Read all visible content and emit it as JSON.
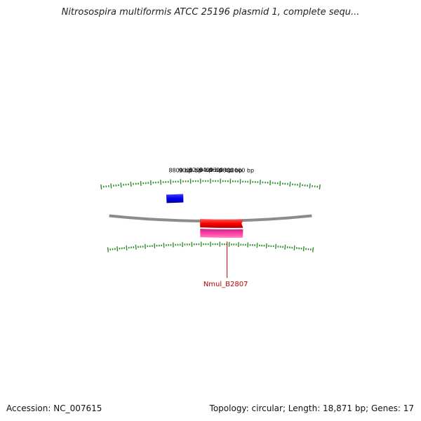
{
  "header": {
    "title": "Nitrosospira multiformis ATCC 25196 plasmid 1, complete sequ..."
  },
  "map": {
    "tick_labels": [
      {
        "label": "10000 bp",
        "bp": 10000
      },
      {
        "label": "9800 bp",
        "bp": 9800
      },
      {
        "label": "9600 bp",
        "bp": 9600
      },
      {
        "label": "9400 bp",
        "bp": 9400
      },
      {
        "label": "9200 bp",
        "bp": 9200
      },
      {
        "label": "9000 bp",
        "bp": 9000
      },
      {
        "label": "8800 bp",
        "bp": 8800
      }
    ],
    "features": [
      {
        "type": "gene",
        "strand": "forward",
        "color": "#ff0000",
        "start_bp": 9182,
        "end_bp": 10087
      },
      {
        "type": "cds",
        "strand": "forward",
        "color": "#ff3ea0",
        "start_bp": 9182,
        "end_bp": 10087,
        "label": "Nmul_B2807"
      },
      {
        "type": "gene",
        "strand": "reverse",
        "color": "#0000ee",
        "start_bp": 8500,
        "end_bp": 8845
      }
    ],
    "colors": {
      "backbone": "#8c8c8c",
      "ticks": "#2e8b2e",
      "gene_forward": "#ff0000",
      "cds_forward": "#ff3ea0",
      "gene_reverse": "#0000ee",
      "label": "#c00000"
    }
  },
  "footer": {
    "accession": "Accession: NC_007615",
    "summary": "Topology: circular; Length: 18,871 bp; Genes: 17"
  }
}
